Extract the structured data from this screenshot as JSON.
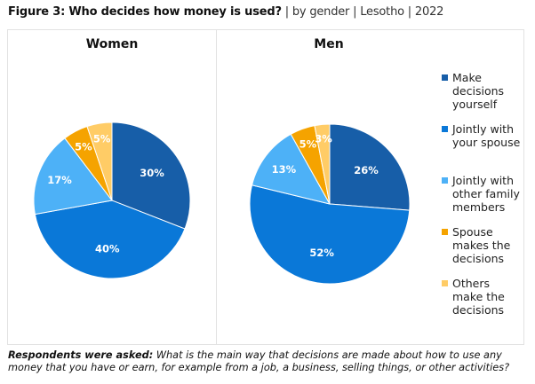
{
  "title": {
    "main": "Figure 3: Who decides how money is used?",
    "sub": " | by gender | Lesotho | 2022"
  },
  "chart_data": [
    {
      "type": "pie",
      "title": "Women",
      "categories": [
        "Make decisions yourself",
        "Jointly with your spouse",
        "Jointly with other family members",
        "Spouse makes the decisions",
        "Others make the decisions"
      ],
      "values": [
        30,
        40,
        17,
        5,
        5
      ],
      "labels": [
        "30%",
        "40%",
        "17%",
        "5%",
        "5%"
      ]
    },
    {
      "type": "pie",
      "title": "Men",
      "categories": [
        "Make decisions yourself",
        "Jointly with your spouse",
        "Jointly with other family members",
        "Spouse makes the decisions",
        "Others make the decisions"
      ],
      "values": [
        26,
        52,
        13,
        5,
        3
      ],
      "labels": [
        "26%",
        "52%",
        "13%",
        "5%",
        "3%"
      ]
    }
  ],
  "colors": [
    "#175ea8",
    "#0a78d8",
    "#4db1f7",
    "#f5a300",
    "#ffcc66"
  ],
  "legend": [
    "Make decisions yourself",
    "Jointly with your spouse",
    "Jointly with other family members",
    "Spouse makes the decisions",
    "Others make the decisions"
  ],
  "note": {
    "bold": "Respondents were asked:",
    "text": " What is the main way that decisions are made about how to use any money that you have or earn, for example from a job, a business, selling things, or other activities?"
  }
}
